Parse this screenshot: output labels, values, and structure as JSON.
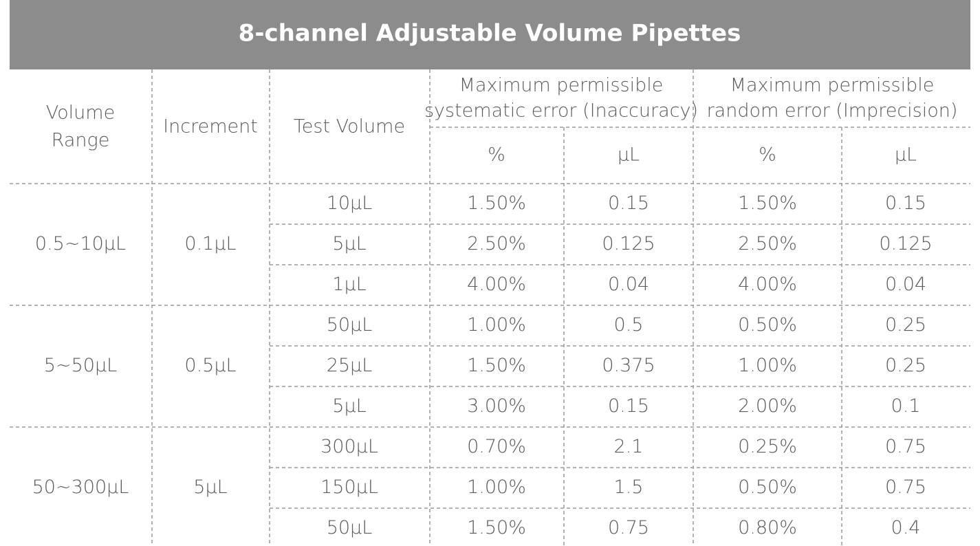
{
  "title": "8-channel Adjustable Volume Pipettes",
  "table": {
    "header": {
      "volume_range": [
        "Volume",
        "Range"
      ],
      "increment": "Increment",
      "test_volume": "Test Volume",
      "inaccuracy": {
        "label": [
          "Maximum permissible",
          "systematic error (Inaccuracy)"
        ],
        "sub": [
          "%",
          "μL"
        ]
      },
      "imprecision": {
        "label": [
          "Maximum permissible",
          "random error (Imprecision)"
        ],
        "sub": [
          "%",
          "μL"
        ]
      }
    },
    "groups": [
      {
        "volume_range": "0.5~10μL",
        "increment": "0.1μL",
        "rows": [
          [
            "10μL",
            "1.50%",
            "0.15",
            "1.50%",
            "0.15"
          ],
          [
            "5μL",
            "2.50%",
            "0.125",
            "2.50%",
            "0.125"
          ],
          [
            "1μL",
            "4.00%",
            "0.04",
            "4.00%",
            "0.04"
          ]
        ]
      },
      {
        "volume_range": "5~50μL",
        "increment": "0.5μL",
        "rows": [
          [
            "50μL",
            "1.00%",
            "0.5",
            "0.50%",
            "0.25"
          ],
          [
            "25μL",
            "1.50%",
            "0.375",
            "1.00%",
            "0.25"
          ],
          [
            "5μL",
            "3.00%",
            "0.15",
            "2.00%",
            "0.1"
          ]
        ]
      },
      {
        "volume_range": "50~300μL",
        "increment": "5μL",
        "rows": [
          [
            "300μL",
            "0.70%",
            "2.1",
            "0.25%",
            "0.75"
          ],
          [
            "150μL",
            "1.00%",
            "1.5",
            "0.50%",
            "0.75"
          ],
          [
            "50μL",
            "1.50%",
            "0.75",
            "0.80%",
            "0.4"
          ]
        ]
      }
    ]
  }
}
